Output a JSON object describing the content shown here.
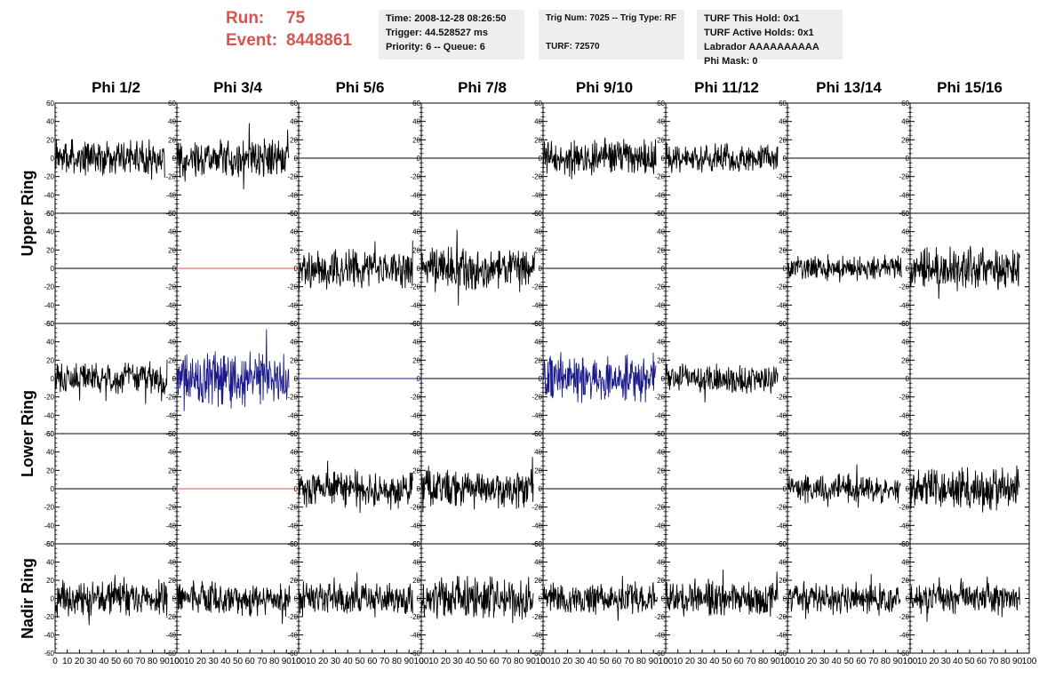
{
  "header": {
    "run_label": "Run:",
    "run_value": "75",
    "event_label": "Event:",
    "event_value": "8448861",
    "time": "Time: 2008-12-28 08:26:50",
    "trigger": "Trigger: 44.528527 ms",
    "priority_queue": "Priority: 6 -- Queue: 6",
    "trig_num_type": "Trig Num: 7025 -- Trig Type: RF",
    "turf": "TURF: 72570",
    "turf_this_hold": "TURF This Hold: 0x1",
    "turf_active_holds": "TURF Active Holds: 0x1",
    "labrador": "Labrador AAAAAAAAAA",
    "phi_mask": "Phi Mask: 0"
  },
  "chart_data": {
    "type": "line",
    "grid": false,
    "columns": [
      "Phi 1/2",
      "Phi 3/4",
      "Phi 5/6",
      "Phi 7/8",
      "Phi 9/10",
      "Phi 11/12",
      "Phi 13/14",
      "Phi 15/16"
    ],
    "ring_labels": [
      "Upper Ring",
      "Lower Ring",
      "Nadir Ring"
    ],
    "ylim": [
      -60,
      60
    ],
    "y_ticks": [
      -60,
      -40,
      -20,
      0,
      20,
      40,
      60
    ],
    "xlim": [
      0,
      100
    ],
    "x_ticks": [
      "0",
      "10",
      "20",
      "30",
      "40",
      "50",
      "60",
      "70",
      "80",
      "90",
      "100"
    ],
    "series_colors": {
      "normal": "#000000",
      "triggered": "#1a1a8c",
      "masked": "#d9534f"
    },
    "rows": [
      {
        "ring": "Upper Ring",
        "panels": [
          {
            "color": "normal",
            "amplitude": 22,
            "x_end": 90
          },
          {
            "color": "normal",
            "amplitude": 24,
            "x_end": 92
          },
          {
            "color": "normal",
            "amplitude": 0,
            "x_end": 100
          },
          {
            "color": "normal",
            "amplitude": 0,
            "x_end": 100
          },
          {
            "color": "normal",
            "amplitude": 25,
            "x_end": 92
          },
          {
            "color": "normal",
            "amplitude": 18,
            "x_end": 92
          },
          {
            "color": "normal",
            "amplitude": 0,
            "x_end": 100
          },
          {
            "color": "normal",
            "amplitude": 0,
            "x_end": 100
          }
        ]
      },
      {
        "ring": "Upper Ring",
        "panels": [
          {
            "color": "normal",
            "amplitude": 0,
            "x_end": 100
          },
          {
            "color": "masked",
            "amplitude": 0,
            "x_end": 100
          },
          {
            "color": "normal",
            "amplitude": 25,
            "x_end": 93
          },
          {
            "color": "normal",
            "amplitude": 28,
            "x_end": 93
          },
          {
            "color": "normal",
            "amplitude": 0,
            "x_end": 100
          },
          {
            "color": "normal",
            "amplitude": 0,
            "x_end": 100
          },
          {
            "color": "normal",
            "amplitude": 16,
            "x_end": 93
          },
          {
            "color": "normal",
            "amplitude": 26,
            "x_end": 92
          }
        ]
      },
      {
        "ring": "Lower Ring",
        "panels": [
          {
            "color": "normal",
            "amplitude": 20,
            "x_end": 92
          },
          {
            "color": "triggered",
            "amplitude": 34,
            "x_end": 92
          },
          {
            "color": "triggered",
            "amplitude": 0,
            "x_end": 100
          },
          {
            "color": "normal",
            "amplitude": 0,
            "x_end": 100
          },
          {
            "color": "triggered",
            "amplitude": 30,
            "x_end": 92
          },
          {
            "color": "normal",
            "amplitude": 18,
            "x_end": 92
          },
          {
            "color": "normal",
            "amplitude": 0,
            "x_end": 100
          },
          {
            "color": "normal",
            "amplitude": 0,
            "x_end": 100
          }
        ]
      },
      {
        "ring": "Lower Ring",
        "panels": [
          {
            "color": "normal",
            "amplitude": 0,
            "x_end": 100
          },
          {
            "color": "masked",
            "amplitude": 0,
            "x_end": 100
          },
          {
            "color": "normal",
            "amplitude": 24,
            "x_end": 93
          },
          {
            "color": "normal",
            "amplitude": 24,
            "x_end": 92
          },
          {
            "color": "normal",
            "amplitude": 0,
            "x_end": 100
          },
          {
            "color": "normal",
            "amplitude": 0,
            "x_end": 100
          },
          {
            "color": "normal",
            "amplitude": 18,
            "x_end": 92
          },
          {
            "color": "normal",
            "amplitude": 26,
            "x_end": 92
          }
        ]
      },
      {
        "ring": "Nadir Ring",
        "panels": [
          {
            "color": "normal",
            "amplitude": 22,
            "x_end": 92
          },
          {
            "color": "normal",
            "amplitude": 22,
            "x_end": 93
          },
          {
            "color": "normal",
            "amplitude": 20,
            "x_end": 93
          },
          {
            "color": "normal",
            "amplitude": 26,
            "x_end": 92
          },
          {
            "color": "normal",
            "amplitude": 20,
            "x_end": 93
          },
          {
            "color": "normal",
            "amplitude": 22,
            "x_end": 92
          },
          {
            "color": "normal",
            "amplitude": 20,
            "x_end": 92
          },
          {
            "color": "normal",
            "amplitude": 20,
            "x_end": 92
          }
        ]
      }
    ]
  }
}
